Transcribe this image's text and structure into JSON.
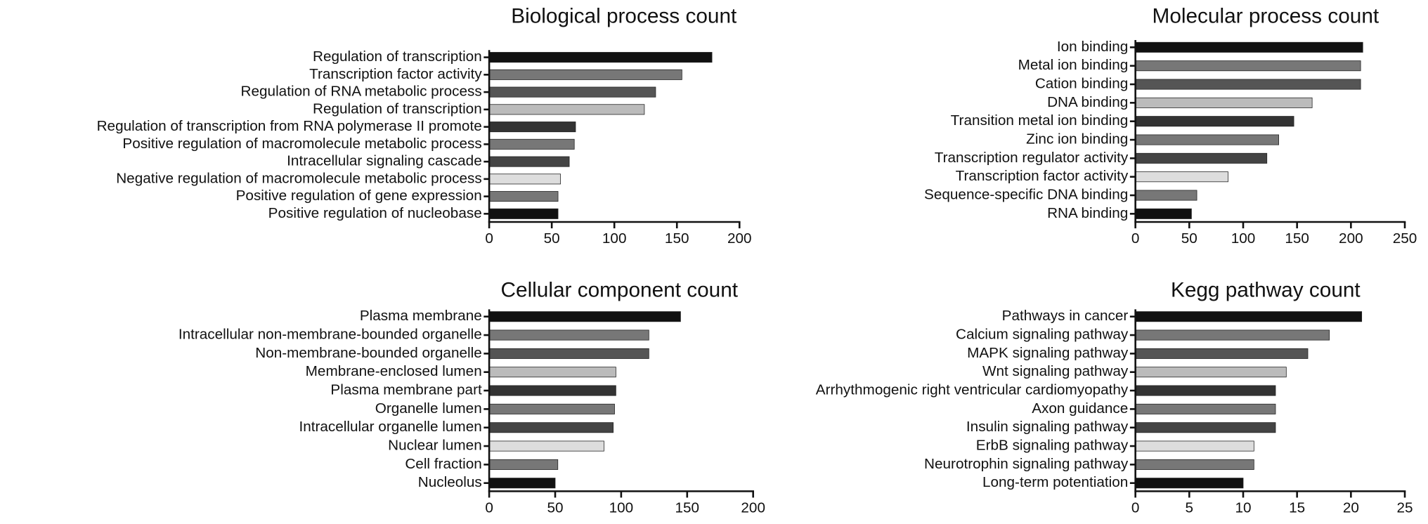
{
  "chart_data": [
    {
      "type": "bar",
      "orientation": "horizontal",
      "title": "Biological process count",
      "categories": [
        "Regulation of transcription",
        "Transcription factor activity",
        "Regulation of RNA metabolic process",
        "Regulation of transcription",
        "Regulation of transcription from RNA polymerase II promote",
        "Positive regulation of macromolecule metabolic process",
        "Intracellular signaling cascade",
        "Negative regulation of macromolecule metabolic process",
        "Positive regulation of gene expression",
        "Positive regulation of nucleobase"
      ],
      "values": [
        178,
        154,
        133,
        124,
        69,
        68,
        64,
        57,
        55,
        55
      ],
      "colors": [
        "#111111",
        "#777777",
        "#555555",
        "#bbbbbb",
        "#333333",
        "#777777",
        "#444444",
        "#dddddd",
        "#777777",
        "#111111"
      ],
      "xlim": [
        0,
        200
      ],
      "xticks": [
        0,
        50,
        100,
        150,
        200
      ]
    },
    {
      "type": "bar",
      "orientation": "horizontal",
      "title": "Molecular process count",
      "categories": [
        "Ion binding",
        "Metal ion binding",
        "Cation binding",
        "DNA binding",
        "Transition metal ion binding",
        "Zinc ion binding",
        "Transcription regulator activity",
        "Transcription factor activity",
        "Sequence-specific DNA binding",
        "RNA binding"
      ],
      "values": [
        211,
        209,
        209,
        164,
        147,
        133,
        122,
        86,
        57,
        52
      ],
      "colors": [
        "#111111",
        "#777777",
        "#555555",
        "#bbbbbb",
        "#333333",
        "#777777",
        "#444444",
        "#dddddd",
        "#777777",
        "#111111"
      ],
      "xlim": [
        0,
        250
      ],
      "xticks": [
        0,
        50,
        100,
        150,
        200,
        250
      ]
    },
    {
      "type": "bar",
      "orientation": "horizontal",
      "title": "Cellular component count",
      "categories": [
        "Plasma membrane",
        "Intracellular non-membrane-bounded organelle",
        "Non-membrane-bounded organelle",
        "Membrane-enclosed lumen",
        "Plasma membrane part",
        "Organelle lumen",
        "Intracellular organelle lumen",
        "Nuclear lumen",
        "Cell fraction",
        "Nucleolus"
      ],
      "values": [
        145,
        121,
        121,
        96,
        96,
        95,
        94,
        87,
        52,
        50
      ],
      "colors": [
        "#111111",
        "#777777",
        "#555555",
        "#bbbbbb",
        "#333333",
        "#777777",
        "#444444",
        "#dddddd",
        "#777777",
        "#111111"
      ],
      "xlim": [
        0,
        200
      ],
      "xticks": [
        0,
        50,
        100,
        150,
        200
      ]
    },
    {
      "type": "bar",
      "orientation": "horizontal",
      "title": "Kegg pathway count",
      "categories": [
        "Pathways in cancer",
        "Calcium signaling pathway",
        "MAPK signaling pathway",
        "Wnt signaling pathway",
        "Arrhythmogenic right ventricular cardiomyopathy",
        "Axon guidance",
        "Insulin signaling pathway",
        "ErbB signaling pathway",
        "Neurotrophin signaling pathway",
        "Long-term potentiation"
      ],
      "values": [
        21,
        18,
        16,
        14,
        13,
        13,
        13,
        11,
        11,
        10
      ],
      "colors": [
        "#111111",
        "#777777",
        "#555555",
        "#bbbbbb",
        "#333333",
        "#777777",
        "#444444",
        "#dddddd",
        "#777777",
        "#111111"
      ],
      "xlim": [
        0,
        25
      ],
      "xticks": [
        0,
        5,
        10,
        15,
        20,
        25
      ]
    }
  ]
}
